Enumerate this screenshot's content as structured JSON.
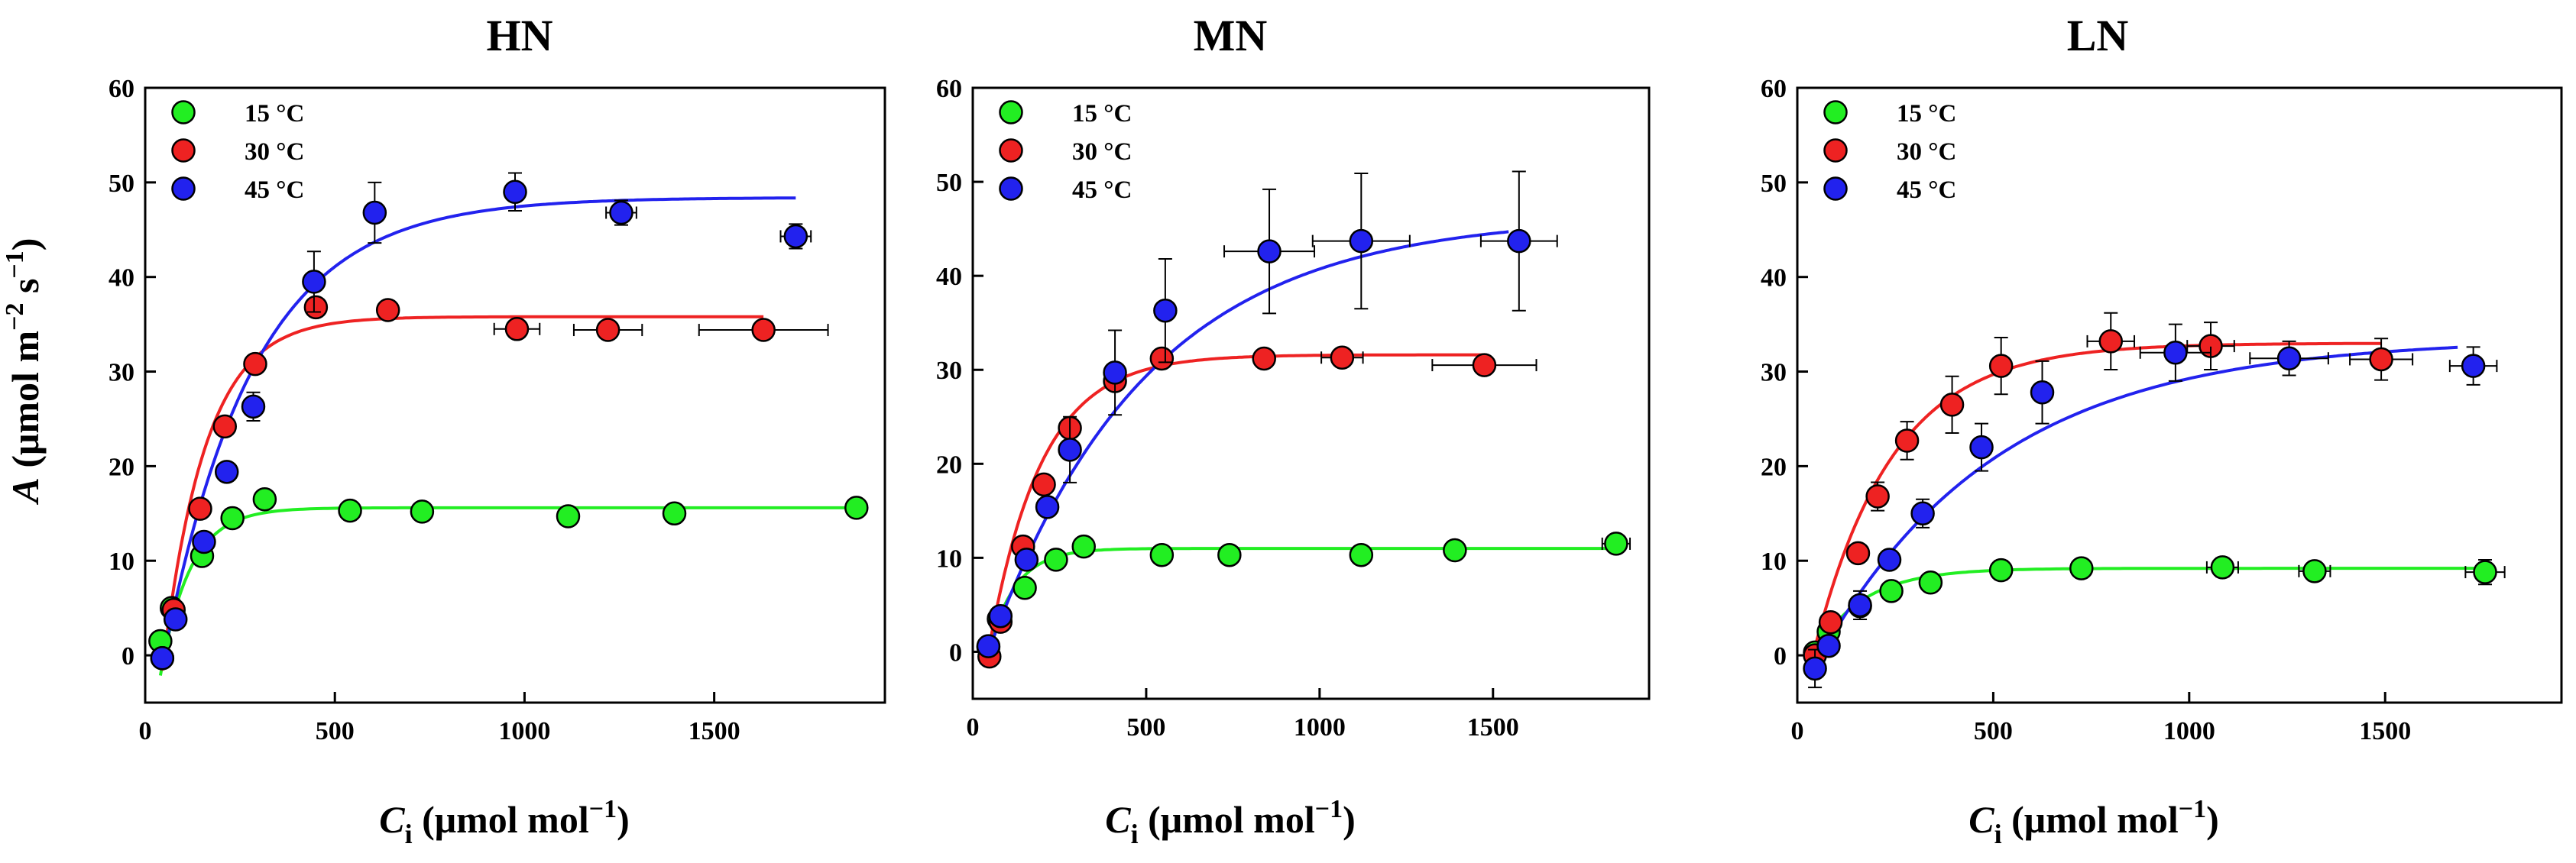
{
  "chart_data": [
    {
      "type": "scatter",
      "title": "HN",
      "xlabel": "Ci (μmol mol−1)",
      "ylabel": "A (μmol m−2 s−1)",
      "xlim": [
        0,
        1950
      ],
      "ylim": [
        -5,
        60
      ],
      "xticks": [
        0,
        500,
        1000,
        1500
      ],
      "yticks": [
        0,
        10,
        20,
        30,
        40,
        50,
        60
      ],
      "legend_position": "top-left",
      "series": [
        {
          "name": "15 °C",
          "color": "#22ee22",
          "x": [
            40,
            70,
            150,
            230,
            315,
            540,
            730,
            1115,
            1395,
            1875
          ],
          "y": [
            1.5,
            5,
            10.5,
            14.5,
            16.5,
            15.3,
            15.2,
            14.7,
            15,
            15.6
          ],
          "xerr": [
            0,
            0,
            0,
            0,
            0,
            0,
            0,
            0,
            0,
            0
          ],
          "yerr": [
            0,
            0,
            0,
            0,
            0,
            0,
            0,
            0,
            0,
            0
          ],
          "fit": {
            "Amax": 15.6,
            "gamma": 50,
            "k": 0.0128
          }
        },
        {
          "name": "30 °C",
          "color": "#ee2222",
          "x": [
            45,
            75,
            145,
            210,
            290,
            450,
            640,
            980,
            1220,
            1630
          ],
          "y": [
            -0.3,
            4.8,
            15.5,
            24.2,
            30.8,
            36.8,
            36.5,
            34.5,
            34.4,
            34.4
          ],
          "xerr": [
            0,
            0,
            0,
            0,
            0,
            0,
            0,
            60,
            90,
            170
          ],
          "yerr": [
            0,
            0,
            0,
            0,
            0,
            0,
            0,
            0,
            0,
            0
          ],
          "fit": {
            "Amax": 35.8,
            "gamma": 50,
            "k": 0.0088
          }
        },
        {
          "name": "45 °C",
          "color": "#2222ee",
          "x": [
            45,
            80,
            155,
            215,
            285,
            445,
            605,
            975,
            1255,
            1715
          ],
          "y": [
            -0.3,
            3.8,
            12,
            19.4,
            26.3,
            39.5,
            46.8,
            49,
            46.8,
            44.3
          ],
          "xerr": [
            0,
            0,
            0,
            0,
            0,
            0,
            0,
            0,
            40,
            40
          ],
          "yerr": [
            0,
            0,
            0,
            0,
            1.5,
            3.2,
            3.2,
            2,
            1.3,
            1.3
          ],
          "fit": {
            "Amax": 48.4,
            "gamma": 50,
            "k": 0.0042
          }
        }
      ]
    },
    {
      "type": "scatter",
      "title": "MN",
      "xlabel": "",
      "ylabel": "",
      "xlim": [
        0,
        1950
      ],
      "ylim": [
        -5,
        60
      ],
      "xticks": [
        0,
        500,
        1000,
        1500
      ],
      "yticks": [
        0,
        10,
        20,
        30,
        40,
        50,
        60
      ],
      "legend_position": "top-left",
      "series": [
        {
          "name": "15 °C",
          "color": "#22ee22",
          "x": [
            45,
            75,
            150,
            240,
            320,
            545,
            740,
            1120,
            1390,
            1855
          ],
          "y": [
            0.5,
            3.5,
            6.8,
            9.8,
            11.2,
            10.3,
            10.3,
            10.3,
            10.8,
            11.5
          ],
          "xerr": [
            0,
            0,
            0,
            0,
            0,
            0,
            0,
            0,
            0,
            40
          ],
          "yerr": [
            0,
            0,
            0,
            0,
            0,
            0,
            0,
            0,
            0,
            0
          ],
          "fit": {
            "Amax": 11.0,
            "gamma": 45,
            "k": 0.0128
          }
        },
        {
          "name": "30 °C",
          "color": "#ee2222",
          "x": [
            48,
            80,
            145,
            205,
            280,
            410,
            545,
            840,
            1065,
            1475
          ],
          "y": [
            -0.5,
            3.2,
            11.2,
            17.8,
            23.8,
            28.8,
            31.2,
            31.2,
            31.3,
            30.5
          ],
          "xerr": [
            0,
            0,
            0,
            0,
            0,
            0,
            0,
            0,
            60,
            150
          ],
          "yerr": [
            0,
            0,
            0,
            0,
            0,
            0,
            0,
            0,
            0,
            0
          ],
          "fit": {
            "Amax": 31.6,
            "gamma": 45,
            "k": 0.0066
          }
        },
        {
          "name": "45 °C",
          "color": "#2222ee",
          "x": [
            45,
            80,
            155,
            215,
            280,
            410,
            555,
            855,
            1120,
            1575
          ],
          "y": [
            0.6,
            3.8,
            9.8,
            15.4,
            21.5,
            29.7,
            36.3,
            42.6,
            43.7,
            43.7
          ],
          "xerr": [
            0,
            0,
            0,
            0,
            0,
            0,
            0,
            130,
            140,
            110
          ],
          "yerr": [
            0,
            0,
            0,
            0,
            3.5,
            4.5,
            5.5,
            6.6,
            7.2,
            7.4
          ],
          "fit": {
            "Amax": 46.4,
            "gamma": 45,
            "k": 0.0022
          }
        }
      ]
    },
    {
      "type": "scatter",
      "title": "LN",
      "xlabel": "",
      "ylabel": "",
      "xlim": [
        0,
        1950
      ],
      "ylim": [
        -5,
        60
      ],
      "xticks": [
        0,
        500,
        1000,
        1500
      ],
      "yticks": [
        0,
        10,
        20,
        30,
        40,
        50,
        60
      ],
      "legend_position": "top-left",
      "series": [
        {
          "name": "15 °C",
          "color": "#22ee22",
          "x": [
            45,
            80,
            160,
            240,
            340,
            520,
            725,
            1085,
            1320,
            1755
          ],
          "y": [
            0.3,
            2.5,
            5.2,
            6.8,
            7.7,
            9,
            9.2,
            9.3,
            8.9,
            8.8
          ],
          "xerr": [
            0,
            0,
            0,
            0,
            0,
            0,
            0,
            40,
            40,
            50
          ],
          "yerr": [
            0,
            0,
            0,
            0,
            0,
            1,
            0,
            1,
            1,
            1.3
          ],
          "fit": {
            "Amax": 9.2,
            "gamma": 40,
            "k": 0.008
          }
        },
        {
          "name": "30 °C",
          "color": "#ee2222",
          "x": [
            45,
            85,
            155,
            205,
            280,
            395,
            520,
            800,
            1055,
            1490
          ],
          "y": [
            0,
            3.5,
            10.8,
            16.8,
            22.7,
            26.5,
            30.6,
            33.2,
            32.7,
            31.3
          ],
          "xerr": [
            0,
            0,
            0,
            0,
            0,
            0,
            0,
            60,
            60,
            80
          ],
          "yerr": [
            0,
            0,
            0,
            1.5,
            2,
            3,
            3,
            3,
            2.5,
            2.2
          ],
          "fit": {
            "Amax": 33.0,
            "gamma": 40,
            "k": 0.005
          }
        },
        {
          "name": "45 °C",
          "color": "#2222ee",
          "x": [
            45,
            80,
            160,
            235,
            320,
            470,
            625,
            965,
            1255,
            1725
          ],
          "y": [
            -1.4,
            1,
            5.3,
            10.1,
            15,
            22,
            27.8,
            32,
            31.4,
            30.6
          ],
          "xerr": [
            0,
            0,
            0,
            0,
            0,
            0,
            0,
            90,
            100,
            60
          ],
          "yerr": [
            2,
            0,
            1.5,
            0,
            1.5,
            2.5,
            3.3,
            3,
            1.8,
            2
          ],
          "fit": {
            "Amax": 33.5,
            "gamma": 60,
            "k": 0.0022
          }
        }
      ]
    }
  ],
  "axes_labels": {
    "y_prefix": "A",
    "y_unit_open": " (μmol m",
    "y_exp1": "−2",
    "y_unit_mid": " s",
    "y_exp2": "−1",
    "y_unit_close": ")",
    "x_prefix": "C",
    "x_sub": "i",
    "x_unit_open": " (μmol mol",
    "x_exp": "−1",
    "x_unit_close": ")"
  }
}
